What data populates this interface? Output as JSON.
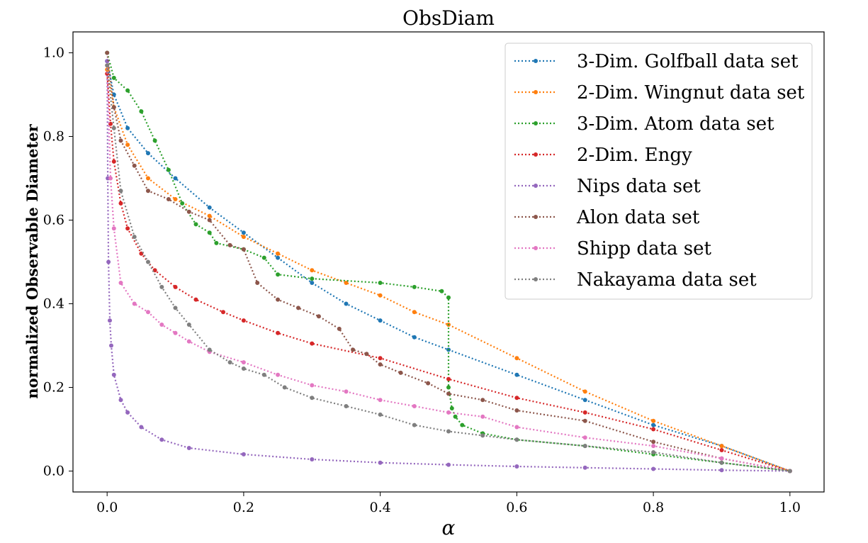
{
  "chart_data": {
    "type": "line",
    "title": "ObsDiam",
    "xlabel": "α",
    "ylabel": "normalized Observable Diameter",
    "xlim": [
      -0.05,
      1.05
    ],
    "ylim": [
      -0.05,
      1.05
    ],
    "xticks": [
      "0.0",
      "0.2",
      "0.4",
      "0.6",
      "0.8",
      "1.0"
    ],
    "yticks": [
      "0.0",
      "0.2",
      "0.4",
      "0.6",
      "0.8",
      "1.0"
    ],
    "grid": false,
    "legend_position": "top-right",
    "series": [
      {
        "name": "3-Dim. Golfball data set",
        "color": "#1f77b4",
        "x": [
          0,
          0.01,
          0.03,
          0.06,
          0.1,
          0.15,
          0.2,
          0.25,
          0.3,
          0.35,
          0.4,
          0.45,
          0.5,
          0.6,
          0.7,
          0.8,
          0.9,
          1.0
        ],
        "y": [
          0.98,
          0.9,
          0.82,
          0.76,
          0.7,
          0.63,
          0.57,
          0.51,
          0.45,
          0.4,
          0.36,
          0.32,
          0.29,
          0.23,
          0.17,
          0.11,
          0.06,
          0.0
        ]
      },
      {
        "name": "2-Dim. Wingnut data set",
        "color": "#ff7f0e",
        "x": [
          0,
          0.01,
          0.03,
          0.06,
          0.1,
          0.15,
          0.2,
          0.25,
          0.3,
          0.35,
          0.4,
          0.45,
          0.5,
          0.6,
          0.7,
          0.8,
          0.9,
          1.0
        ],
        "y": [
          0.96,
          0.87,
          0.78,
          0.7,
          0.65,
          0.61,
          0.56,
          0.52,
          0.48,
          0.45,
          0.42,
          0.38,
          0.35,
          0.27,
          0.19,
          0.12,
          0.06,
          0.0
        ]
      },
      {
        "name": "3-Dim. Atom data set",
        "color": "#2ca02c",
        "x": [
          0,
          0.01,
          0.03,
          0.05,
          0.07,
          0.09,
          0.11,
          0.13,
          0.15,
          0.16,
          0.2,
          0.23,
          0.25,
          0.3,
          0.4,
          0.45,
          0.49,
          0.5,
          0.5,
          0.505,
          0.51,
          0.52,
          0.55,
          0.6,
          0.7,
          0.8,
          0.9,
          1.0
        ],
        "y": [
          1.0,
          0.94,
          0.91,
          0.86,
          0.79,
          0.72,
          0.64,
          0.59,
          0.57,
          0.545,
          0.53,
          0.51,
          0.47,
          0.46,
          0.45,
          0.44,
          0.43,
          0.415,
          0.2,
          0.15,
          0.13,
          0.11,
          0.09,
          0.075,
          0.06,
          0.04,
          0.02,
          0.0
        ]
      },
      {
        "name": "2-Dim. Engy",
        "color": "#d62728",
        "x": [
          0,
          0.005,
          0.01,
          0.02,
          0.03,
          0.05,
          0.07,
          0.1,
          0.13,
          0.17,
          0.2,
          0.25,
          0.3,
          0.4,
          0.5,
          0.6,
          0.7,
          0.8,
          0.9,
          1.0
        ],
        "y": [
          0.95,
          0.83,
          0.74,
          0.64,
          0.58,
          0.52,
          0.48,
          0.44,
          0.41,
          0.38,
          0.36,
          0.33,
          0.305,
          0.27,
          0.22,
          0.175,
          0.14,
          0.1,
          0.05,
          0.0
        ]
      },
      {
        "name": "Nips data set",
        "color": "#9467bd",
        "x": [
          0,
          0.001,
          0.002,
          0.004,
          0.006,
          0.01,
          0.02,
          0.03,
          0.05,
          0.08,
          0.12,
          0.2,
          0.3,
          0.4,
          0.5,
          0.6,
          0.7,
          0.8,
          0.9,
          1.0
        ],
        "y": [
          0.98,
          0.7,
          0.5,
          0.36,
          0.3,
          0.23,
          0.17,
          0.14,
          0.105,
          0.075,
          0.055,
          0.04,
          0.028,
          0.02,
          0.015,
          0.011,
          0.008,
          0.005,
          0.002,
          0.0
        ]
      },
      {
        "name": "Alon data set",
        "color": "#8c564b",
        "x": [
          0,
          0.01,
          0.02,
          0.04,
          0.06,
          0.09,
          0.12,
          0.15,
          0.18,
          0.2,
          0.22,
          0.25,
          0.28,
          0.31,
          0.34,
          0.36,
          0.38,
          0.4,
          0.43,
          0.47,
          0.5,
          0.55,
          0.6,
          0.7,
          0.8,
          0.9,
          1.0
        ],
        "y": [
          1.0,
          0.87,
          0.79,
          0.73,
          0.67,
          0.65,
          0.62,
          0.6,
          0.54,
          0.53,
          0.45,
          0.41,
          0.39,
          0.37,
          0.34,
          0.29,
          0.28,
          0.255,
          0.235,
          0.21,
          0.185,
          0.17,
          0.145,
          0.12,
          0.07,
          0.03,
          0.0
        ]
      },
      {
        "name": "Shipp data set",
        "color": "#e377c2",
        "x": [
          0,
          0.005,
          0.01,
          0.02,
          0.04,
          0.06,
          0.08,
          0.1,
          0.12,
          0.15,
          0.2,
          0.25,
          0.3,
          0.35,
          0.4,
          0.45,
          0.5,
          0.55,
          0.6,
          0.7,
          0.8,
          0.9,
          1.0
        ],
        "y": [
          0.97,
          0.7,
          0.58,
          0.45,
          0.4,
          0.38,
          0.35,
          0.33,
          0.31,
          0.285,
          0.26,
          0.23,
          0.205,
          0.19,
          0.17,
          0.155,
          0.14,
          0.13,
          0.105,
          0.08,
          0.06,
          0.03,
          0.0
        ]
      },
      {
        "name": "Nakayama data set",
        "color": "#7f7f7f",
        "x": [
          0,
          0.01,
          0.02,
          0.04,
          0.06,
          0.08,
          0.1,
          0.12,
          0.15,
          0.18,
          0.2,
          0.23,
          0.26,
          0.3,
          0.35,
          0.4,
          0.45,
          0.5,
          0.55,
          0.6,
          0.7,
          0.8,
          0.9,
          1.0
        ],
        "y": [
          0.97,
          0.82,
          0.67,
          0.56,
          0.5,
          0.44,
          0.39,
          0.35,
          0.29,
          0.26,
          0.245,
          0.23,
          0.2,
          0.175,
          0.155,
          0.135,
          0.11,
          0.095,
          0.085,
          0.075,
          0.06,
          0.045,
          0.02,
          0.0
        ]
      }
    ]
  }
}
